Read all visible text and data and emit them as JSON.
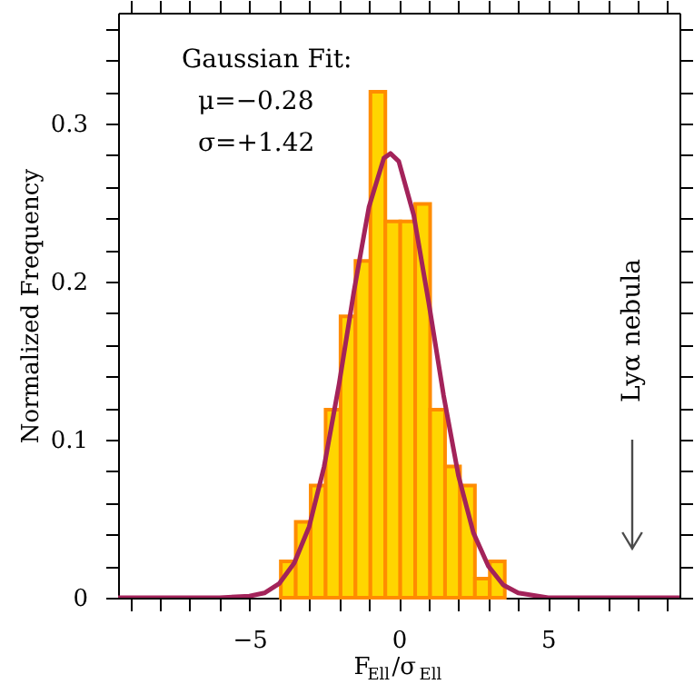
{
  "chart_data": {
    "type": "histogram",
    "xlabel": "F$_{Ell}$/σ$_{Ell}$",
    "ylabel": "Normalized Frequency",
    "bins": [
      -3.95,
      -3.45,
      -2.95,
      -2.45,
      -1.95,
      -1.45,
      -0.95,
      -0.45,
      0.05,
      0.55,
      1.05,
      1.55,
      2.05,
      2.55,
      3.05,
      3.55
    ],
    "values": [
      0.023,
      0.048,
      0.071,
      0.119,
      0.178,
      0.213,
      0.32,
      0.238,
      0.238,
      0.249,
      0.119,
      0.083,
      0.071,
      0.012,
      0.023
    ],
    "color": "#ffd500",
    "series": [
      {
        "type": "line",
        "color": "#a3235a",
        "x": [
          -9.4,
          -6,
          -5,
          -4.5,
          -4,
          -3.5,
          -3,
          -2.5,
          -2,
          -1.5,
          -1,
          -0.5,
          -0.28,
          0,
          0.5,
          1,
          1.5,
          2,
          2.5,
          3,
          3.5,
          4,
          5,
          9.4
        ],
        "values": [
          0,
          0,
          0.001,
          0.003,
          0.009,
          0.022,
          0.045,
          0.083,
          0.135,
          0.194,
          0.247,
          0.278,
          0.281,
          0.276,
          0.242,
          0.187,
          0.128,
          0.077,
          0.041,
          0.02,
          0.008,
          0.003,
          0,
          0
        ]
      }
    ],
    "xlim": [
      -9.4,
      9.4
    ],
    "ylim": [
      0,
      0.37
    ],
    "xticks": [
      {
        "value": -9,
        "label": null
      },
      {
        "value": -8,
        "label": null
      },
      {
        "value": -7,
        "label": null
      },
      {
        "value": -6,
        "label": null
      },
      -5,
      {
        "value": -4,
        "label": null
      },
      {
        "value": -3,
        "label": null
      },
      {
        "value": -2,
        "label": null
      },
      {
        "value": -1,
        "label": null
      },
      0,
      {
        "value": 1,
        "label": null
      },
      {
        "value": 2,
        "label": null
      },
      {
        "value": 3,
        "label": null
      },
      {
        "value": 4,
        "label": null
      },
      5,
      {
        "value": 6,
        "label": null
      },
      {
        "value": 7,
        "label": null
      },
      {
        "value": 8,
        "label": null
      },
      {
        "value": 9,
        "label": null
      }
    ],
    "yticks": [
      0,
      {
        "value": 0.02,
        "label": null
      },
      {
        "value": 0.04,
        "label": null
      },
      {
        "value": 0.06,
        "label": null
      },
      {
        "value": 0.08,
        "label": null
      },
      0.1,
      {
        "value": 0.12,
        "label": null
      },
      {
        "value": 0.14,
        "label": null
      },
      {
        "value": 0.16,
        "label": null
      },
      {
        "value": 0.18,
        "label": null
      },
      0.2,
      {
        "value": 0.22,
        "label": null
      },
      {
        "value": 0.24,
        "label": null
      },
      {
        "value": 0.26,
        "label": null
      },
      {
        "value": 0.28,
        "label": null
      },
      0.3,
      {
        "value": 0.32,
        "label": null
      },
      {
        "value": 0.34,
        "label": null
      },
      {
        "value": 0.36,
        "label": null
      }
    ],
    "grid": false,
    "annotations": [
      "Gaussian Fit:",
      "μ=−0.28",
      "σ=+1.42",
      "Lyα nebula"
    ]
  }
}
